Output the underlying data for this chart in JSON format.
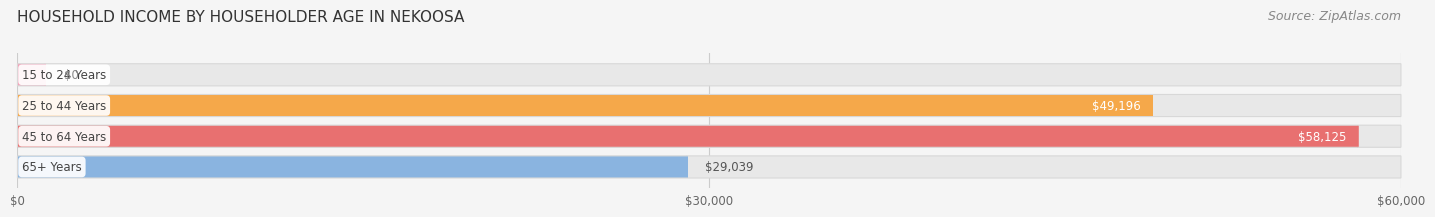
{
  "title": "HOUSEHOLD INCOME BY HOUSEHOLDER AGE IN NEKOOSA",
  "source": "Source: ZipAtlas.com",
  "categories": [
    "15 to 24 Years",
    "25 to 44 Years",
    "45 to 64 Years",
    "65+ Years"
  ],
  "values": [
    0,
    49196,
    58125,
    29039
  ],
  "bar_colors": [
    "#f4a0b8",
    "#f5a84a",
    "#e87070",
    "#8ab4e0"
  ],
  "track_color": "#e8e8e8",
  "track_edge_color": "#d8d8d8",
  "xlim": [
    0,
    60000
  ],
  "xticks": [
    0,
    30000,
    60000
  ],
  "xtick_labels": [
    "$0",
    "$30,000",
    "$60,000"
  ],
  "title_fontsize": 11,
  "source_fontsize": 9,
  "bar_height": 0.72,
  "bar_gap": 0.12,
  "background_color": "#f5f5f5",
  "value_inside_colors": [
    "#888888",
    "#ffffff",
    "#ffffff",
    "#555555"
  ],
  "value_inside": [
    false,
    true,
    true,
    false
  ],
  "value_labels": [
    "$0",
    "$49,196",
    "$58,125",
    "$29,039"
  ],
  "zero_bar_width": 1200
}
